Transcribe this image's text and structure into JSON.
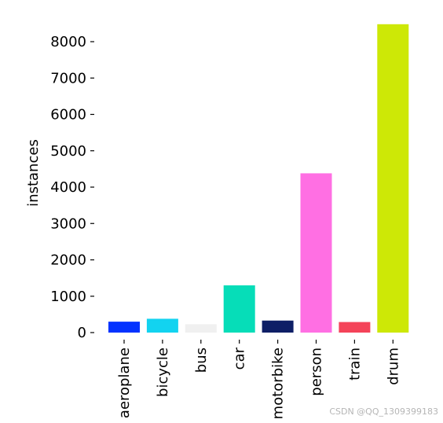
{
  "chart_data": {
    "type": "bar",
    "title": "",
    "xlabel": "",
    "ylabel": "instances",
    "categories": [
      "aeroplane",
      "bicycle",
      "bus",
      "car",
      "motorbike",
      "person",
      "train",
      "drum"
    ],
    "values": [
      300,
      380,
      230,
      1300,
      330,
      4380,
      290,
      8480
    ],
    "colors": [
      "#0433ff",
      "#12d3f0",
      "#f0f0f0",
      "#06ddb8",
      "#0e1f66",
      "#ff6fe3",
      "#f44359",
      "#cde806"
    ],
    "yticks": [
      0,
      1000,
      2000,
      3000,
      4000,
      5000,
      6000,
      7000,
      8000
    ],
    "ylim": [
      0,
      8500
    ],
    "grid": false,
    "legend": "none"
  },
  "watermark": "CSDN @QQ_1309399183"
}
